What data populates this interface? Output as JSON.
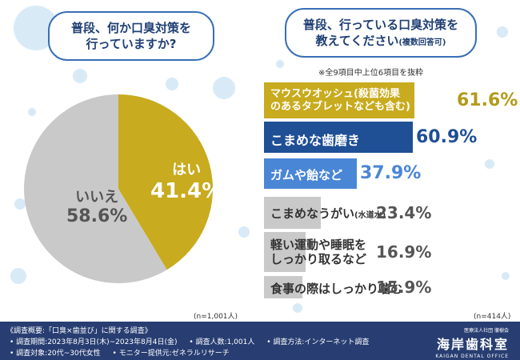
{
  "questions": {
    "q1_line1": "普段、何か口臭対策を",
    "q1_line2": "行っていますか?",
    "q2_line1": "普段、行っている口臭対策を",
    "q2_line2": "教えてください",
    "q2_suffix": "(複数回答可)"
  },
  "note": "※全9項目中上位6項目を抜粋",
  "pie_n": "(n=1,001人)",
  "bar_n": "(n=414人)",
  "colors": {
    "gold": "#c8ab1e",
    "gray": "#c9c9c9",
    "navy": "#1f4f95",
    "blue": "#4a86d6",
    "circle": "#d9eaf7",
    "footer": "#283e72"
  },
  "chart_data": [
    {
      "type": "pie",
      "slices": [
        {
          "label": "はい",
          "value": 41.4,
          "display": "41.4%"
        },
        {
          "label": "いいえ",
          "value": 58.6,
          "display": "58.6%"
        }
      ]
    },
    {
      "type": "bar",
      "categories": [
        "マウスウオッシュ(殺菌効果のあるタブレットなども含む)",
        "こまめな歯磨き",
        "ガムや飴など",
        "こまめなうがい(水道水)",
        "軽い運動や睡眠をしっかり取るなど",
        "食事の際はしっかり噛む"
      ],
      "values": [
        61.6,
        60.9,
        37.9,
        23.4,
        16.9,
        15.9
      ],
      "xlim": [
        0,
        100
      ]
    }
  ],
  "bars": [
    {
      "line1": "マウスウオッシュ(殺菌効果",
      "line2": "のあるタブレットなども含む)",
      "value": "61.6%"
    },
    {
      "line1": "こまめな歯磨き",
      "line2": "",
      "value": "60.9%"
    },
    {
      "line1": "ガムや飴など",
      "line2": "",
      "value": "37.9%"
    },
    {
      "line1": "こまめなうがい",
      "line2": "(水道水)",
      "value": "23.4%"
    },
    {
      "line1": "軽い運動や睡眠を",
      "line2": "しっかり取るなど",
      "value": "16.9%"
    },
    {
      "line1": "食事の際はしっかり噛む",
      "line2": "",
      "value": "15.9%"
    }
  ],
  "footer": {
    "title": "《調査概要:「口臭×歯並び」に関する調査》",
    "period": "• 調査期間:2023年8月3日(木)~2023年8月4日(金)",
    "people": "• 調査人数:1,001人",
    "method": "• 調査方法:インターネット調査",
    "target": "• 調査対象:20代~30代女性",
    "provider": "• モニター提供元:ゼネラルリサーチ",
    "logo_small": "医療法人社団 徹樹会",
    "logo_jp": "海岸歯科室",
    "logo_en": "KAIGAN DENTAL OFFICE"
  }
}
